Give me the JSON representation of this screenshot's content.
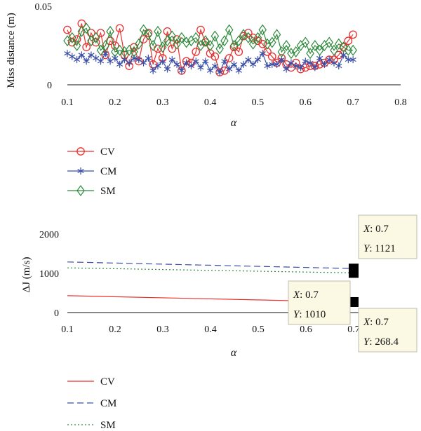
{
  "chart_data": [
    {
      "type": "line",
      "ylabel": "Miss distance (m)",
      "xlabel": "α",
      "xlim": [
        0.1,
        0.8
      ],
      "ylim": [
        0,
        0.05
      ],
      "xticks": [
        "0.1",
        "0.2",
        "0.3",
        "0.4",
        "0.5",
        "0.6",
        "0.7",
        "0.8"
      ],
      "yticks": [
        "0",
        "0.05"
      ],
      "legend_position": "below",
      "series": [
        {
          "name": "CV",
          "color": "#e8302f",
          "marker": "circle",
          "x": [
            0.1,
            0.11,
            0.12,
            0.13,
            0.14,
            0.15,
            0.16,
            0.17,
            0.18,
            0.19,
            0.2,
            0.21,
            0.22,
            0.23,
            0.24,
            0.25,
            0.26,
            0.27,
            0.28,
            0.29,
            0.3,
            0.31,
            0.32,
            0.33,
            0.34,
            0.35,
            0.36,
            0.37,
            0.38,
            0.39,
            0.4,
            0.41,
            0.42,
            0.43,
            0.44,
            0.45,
            0.46,
            0.47,
            0.48,
            0.49,
            0.5,
            0.51,
            0.52,
            0.53,
            0.54,
            0.55,
            0.56,
            0.57,
            0.58,
            0.59,
            0.6,
            0.61,
            0.62,
            0.63,
            0.64,
            0.65,
            0.66,
            0.67,
            0.68,
            0.69,
            0.7
          ],
          "y": [
            0.035,
            0.027,
            0.029,
            0.039,
            0.024,
            0.033,
            0.027,
            0.033,
            0.019,
            0.028,
            0.025,
            0.036,
            0.019,
            0.012,
            0.024,
            0.015,
            0.029,
            0.033,
            0.013,
            0.023,
            0.017,
            0.034,
            0.023,
            0.029,
            0.009,
            0.015,
            0.014,
            0.021,
            0.035,
            0.027,
            0.02,
            0.018,
            0.008,
            0.009,
            0.017,
            0.024,
            0.021,
            0.031,
            0.033,
            0.03,
            0.028,
            0.026,
            0.021,
            0.018,
            0.014,
            0.017,
            0.013,
            0.011,
            0.014,
            0.01,
            0.011,
            0.012,
            0.012,
            0.013,
            0.014,
            0.016,
            0.016,
            0.019,
            0.024,
            0.028,
            0.032
          ]
        },
        {
          "name": "CM",
          "color": "#3a4fa8",
          "marker": "asterisk",
          "x": [
            0.1,
            0.11,
            0.12,
            0.13,
            0.14,
            0.15,
            0.16,
            0.17,
            0.18,
            0.19,
            0.2,
            0.21,
            0.22,
            0.23,
            0.24,
            0.25,
            0.26,
            0.27,
            0.28,
            0.29,
            0.3,
            0.31,
            0.32,
            0.33,
            0.34,
            0.35,
            0.36,
            0.37,
            0.38,
            0.39,
            0.4,
            0.41,
            0.42,
            0.43,
            0.44,
            0.45,
            0.46,
            0.47,
            0.48,
            0.49,
            0.5,
            0.51,
            0.52,
            0.53,
            0.54,
            0.55,
            0.56,
            0.57,
            0.58,
            0.59,
            0.6,
            0.61,
            0.62,
            0.63,
            0.64,
            0.65,
            0.66,
            0.67,
            0.68,
            0.69,
            0.7
          ],
          "y": [
            0.02,
            0.018,
            0.016,
            0.019,
            0.015,
            0.019,
            0.017,
            0.015,
            0.02,
            0.015,
            0.017,
            0.013,
            0.016,
            0.014,
            0.017,
            0.016,
            0.014,
            0.017,
            0.009,
            0.012,
            0.015,
            0.01,
            0.016,
            0.013,
            0.009,
            0.014,
            0.012,
            0.015,
            0.011,
            0.015,
            0.009,
            0.012,
            0.008,
            0.015,
            0.01,
            0.013,
            0.009,
            0.013,
            0.016,
            0.013,
            0.016,
            0.02,
            0.012,
            0.013,
            0.013,
            0.016,
            0.01,
            0.014,
            0.012,
            0.011,
            0.015,
            0.014,
            0.011,
            0.017,
            0.013,
            0.016,
            0.014,
            0.012,
            0.019,
            0.016,
            0.016
          ]
        },
        {
          "name": "SM",
          "color": "#2e8b3c",
          "marker": "diamond",
          "x": [
            0.1,
            0.11,
            0.12,
            0.13,
            0.14,
            0.15,
            0.16,
            0.17,
            0.18,
            0.19,
            0.2,
            0.21,
            0.22,
            0.23,
            0.24,
            0.25,
            0.26,
            0.27,
            0.28,
            0.29,
            0.3,
            0.31,
            0.32,
            0.33,
            0.34,
            0.35,
            0.36,
            0.37,
            0.38,
            0.39,
            0.4,
            0.41,
            0.42,
            0.43,
            0.44,
            0.45,
            0.46,
            0.47,
            0.48,
            0.49,
            0.5,
            0.51,
            0.52,
            0.53,
            0.54,
            0.55,
            0.56,
            0.57,
            0.58,
            0.59,
            0.6,
            0.61,
            0.62,
            0.63,
            0.64,
            0.65,
            0.66,
            0.67,
            0.68,
            0.69,
            0.7
          ],
          "y": [
            0.028,
            0.03,
            0.025,
            0.034,
            0.036,
            0.028,
            0.03,
            0.022,
            0.025,
            0.034,
            0.021,
            0.022,
            0.021,
            0.022,
            0.021,
            0.026,
            0.035,
            0.032,
            0.025,
            0.034,
            0.024,
            0.028,
            0.031,
            0.026,
            0.03,
            0.027,
            0.028,
            0.03,
            0.025,
            0.028,
            0.025,
            0.031,
            0.023,
            0.028,
            0.035,
            0.025,
            0.028,
            0.032,
            0.03,
            0.026,
            0.03,
            0.035,
            0.026,
            0.027,
            0.032,
            0.021,
            0.025,
            0.02,
            0.021,
            0.025,
            0.027,
            0.02,
            0.025,
            0.022,
            0.025,
            0.027,
            0.022,
            0.026,
            0.024,
            0.022,
            0.022
          ]
        }
      ]
    },
    {
      "type": "line",
      "ylabel": "ΔJ (m/s)",
      "xlabel": "α",
      "xlim": [
        0.1,
        0.7
      ],
      "ylim": [
        0,
        2000
      ],
      "xticks": [
        "0.1",
        "0.2",
        "0.3",
        "0.4",
        "0.5",
        "0.6",
        "0.7"
      ],
      "yticks": [
        "0",
        "1000",
        "2000"
      ],
      "legend_position": "below",
      "series": [
        {
          "name": "CV",
          "color": "#e8302f",
          "style": "solid",
          "x": [
            0.1,
            0.7
          ],
          "y": [
            430,
            268.4
          ]
        },
        {
          "name": "CM",
          "color": "#3a4fa8",
          "style": "dashed",
          "x": [
            0.1,
            0.7
          ],
          "y": [
            1290,
            1121
          ]
        },
        {
          "name": "SM",
          "color": "#2e8b3c",
          "style": "dotted",
          "x": [
            0.1,
            0.7
          ],
          "y": [
            1140,
            1010
          ]
        }
      ],
      "annotations": [
        {
          "x_label": "X",
          "x_value": "0.7",
          "y_label": "Y",
          "y_value": "1121"
        },
        {
          "x_label": "X",
          "x_value": "0.7",
          "y_label": "Y",
          "y_value": "1010"
        },
        {
          "x_label": "X",
          "x_value": "0.7",
          "y_label": "Y",
          "y_value": "268.4"
        }
      ]
    }
  ]
}
